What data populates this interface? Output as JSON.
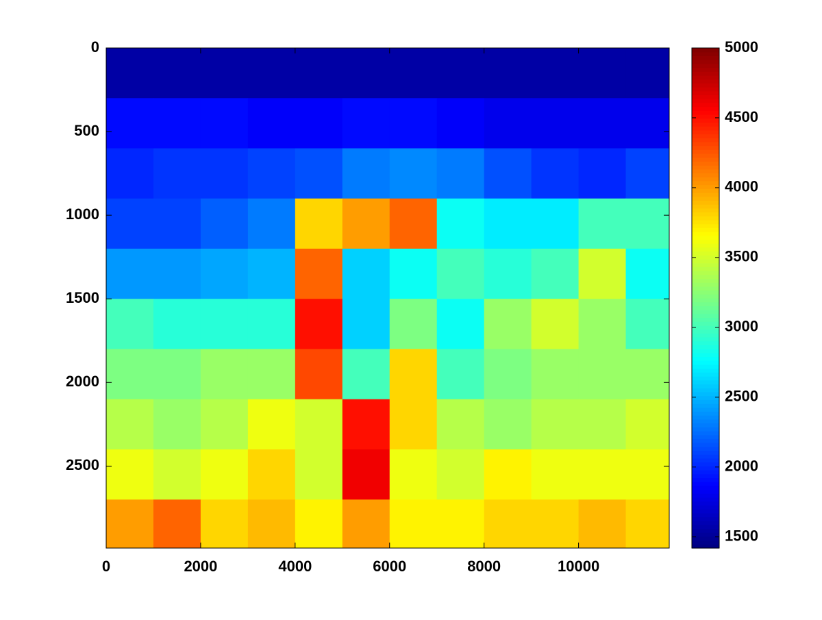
{
  "chart_data": {
    "type": "heatmap",
    "x": [
      500,
      1500,
      2500,
      3500,
      4500,
      5500,
      6500,
      7500,
      8500,
      9500,
      10500,
      11500
    ],
    "y": [
      150,
      450,
      750,
      1050,
      1350,
      1650,
      1950,
      2250,
      2550,
      2850
    ],
    "cell_width": 1000,
    "cell_height": 300,
    "z": [
      [
        1550,
        1550,
        1550,
        1550,
        1550,
        1550,
        1550,
        1550,
        1550,
        1550,
        1550,
        1550
      ],
      [
        1900,
        1900,
        1900,
        1850,
        1850,
        1900,
        1900,
        1850,
        1800,
        1800,
        1800,
        1800
      ],
      [
        2000,
        2050,
        2050,
        2100,
        2150,
        2300,
        2350,
        2300,
        2150,
        2050,
        2000,
        2100
      ],
      [
        2100,
        2100,
        2200,
        2300,
        3800,
        4000,
        4200,
        2800,
        2700,
        2700,
        3000,
        3000
      ],
      [
        2400,
        2400,
        2450,
        2500,
        4200,
        2600,
        2800,
        3000,
        2900,
        3000,
        3500,
        2800
      ],
      [
        3000,
        2900,
        2900,
        2900,
        4500,
        2600,
        3200,
        2800,
        3300,
        3500,
        3300,
        3000
      ],
      [
        3200,
        3200,
        3300,
        3300,
        4300,
        3000,
        3800,
        3000,
        3200,
        3300,
        3300,
        3300
      ],
      [
        3400,
        3300,
        3400,
        3600,
        3500,
        4500,
        3800,
        3400,
        3300,
        3400,
        3400,
        3500
      ],
      [
        3600,
        3500,
        3600,
        3800,
        3500,
        4600,
        3600,
        3500,
        3700,
        3600,
        3600,
        3600
      ],
      [
        4000,
        4200,
        3800,
        3900,
        3700,
        4000,
        3700,
        3700,
        3800,
        3800,
        3900,
        3800
      ]
    ],
    "xlim": [
      0,
      11920
    ],
    "xticks": [
      0,
      2000,
      4000,
      6000,
      8000,
      10000
    ],
    "ylim": [
      0,
      2990
    ],
    "yticks": [
      0,
      500,
      1000,
      1500,
      2000,
      2500
    ],
    "y_reversed": true,
    "clim": [
      1420,
      5000
    ],
    "cticks": [
      1500,
      2000,
      2500,
      3000,
      3500,
      4000,
      4500,
      5000
    ],
    "colormap": "jet"
  }
}
